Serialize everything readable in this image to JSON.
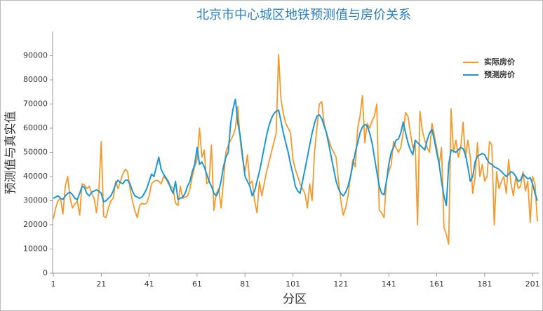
{
  "chart_data": {
    "type": "line",
    "title": "北京市中心城区地铁预测值与房价关系",
    "x_label": "分区",
    "y_label": "预测值与真实值",
    "x": [
      1,
      2,
      3,
      4,
      5,
      6,
      7,
      8,
      9,
      10,
      11,
      12,
      13,
      14,
      15,
      16,
      17,
      18,
      19,
      20,
      21,
      22,
      23,
      24,
      25,
      26,
      27,
      28,
      29,
      30,
      31,
      32,
      33,
      34,
      35,
      36,
      37,
      38,
      39,
      40,
      41,
      42,
      43,
      44,
      45,
      46,
      47,
      48,
      49,
      50,
      51,
      52,
      53,
      54,
      55,
      56,
      57,
      58,
      59,
      60,
      61,
      62,
      63,
      64,
      65,
      66,
      67,
      68,
      69,
      70,
      71,
      72,
      73,
      74,
      75,
      76,
      77,
      78,
      79,
      80,
      81,
      82,
      83,
      84,
      85,
      86,
      87,
      88,
      89,
      90,
      91,
      92,
      93,
      94,
      95,
      96,
      97,
      98,
      99,
      100,
      101,
      102,
      103,
      104,
      105,
      106,
      107,
      108,
      109,
      110,
      111,
      112,
      113,
      114,
      115,
      116,
      117,
      118,
      119,
      120,
      121,
      122,
      123,
      124,
      125,
      126,
      127,
      128,
      129,
      130,
      131,
      132,
      133,
      134,
      135,
      136,
      137,
      138,
      139,
      140,
      141,
      142,
      143,
      144,
      145,
      146,
      147,
      148,
      149,
      150,
      151,
      152,
      153,
      154,
      155,
      156,
      157,
      158,
      159,
      160,
      161,
      162,
      163,
      164,
      165,
      166,
      167,
      168,
      169,
      170,
      171,
      172,
      173,
      174,
      175,
      176,
      177,
      178,
      179,
      180,
      181,
      182,
      183,
      184,
      185,
      186,
      187,
      188,
      189,
      190,
      191,
      192,
      193,
      194,
      195,
      196,
      197,
      198,
      199,
      200,
      201,
      202,
      203
    ],
    "series": [
      {
        "name": "实际房价",
        "color": "#f39a2b",
        "values": [
          22500,
          27000,
          30000,
          31000,
          24500,
          36000,
          40000,
          31000,
          27000,
          28500,
          30000,
          24000,
          37000,
          36500,
          35000,
          36000,
          33000,
          31000,
          25000,
          34000,
          54500,
          23500,
          23000,
          27000,
          30000,
          31000,
          38000,
          35000,
          38000,
          41000,
          43000,
          42000,
          35000,
          30000,
          26000,
          23000,
          28000,
          29000,
          28500,
          29000,
          32000,
          37000,
          38000,
          38500,
          38000,
          37000,
          40000,
          39000,
          37000,
          36000,
          35000,
          29000,
          28000,
          36000,
          31000,
          31500,
          32000,
          35000,
          40000,
          44000,
          47000,
          60000,
          48000,
          51000,
          37000,
          38000,
          53000,
          26000,
          33000,
          35000,
          27000,
          38000,
          50000,
          53000,
          55000,
          57000,
          60000,
          69000,
          55000,
          47000,
          42000,
          49000,
          37000,
          38000,
          30000,
          25000,
          38000,
          32000,
          37000,
          42000,
          46000,
          50000,
          54000,
          58000,
          90500,
          72000,
          66000,
          62000,
          60000,
          58000,
          47000,
          43000,
          40000,
          37000,
          35000,
          33000,
          27000,
          37000,
          30000,
          50000,
          60000,
          70000,
          71000,
          62000,
          58000,
          55000,
          52000,
          50000,
          48000,
          38000,
          30000,
          24000,
          27000,
          32000,
          40000,
          47000,
          44000,
          60000,
          65000,
          73500,
          54000,
          62000,
          60000,
          63000,
          65000,
          70000,
          26000,
          25000,
          23000,
          38000,
          42000,
          45000,
          54500,
          52000,
          50000,
          52000,
          58000,
          66500,
          65000,
          58000,
          52000,
          54000,
          20000,
          67000,
          59000,
          55000,
          52000,
          50000,
          62000,
          57000,
          52000,
          45000,
          52000,
          19000,
          16000,
          12000,
          68000,
          50000,
          55000,
          48000,
          52000,
          62500,
          48000,
          55000,
          48000,
          33000,
          40000,
          54000,
          40000,
          45000,
          38000,
          40000,
          54500,
          53000,
          20000,
          42000,
          35000,
          38000,
          40000,
          33000,
          47000,
          37000,
          32000,
          40000,
          35000,
          36000,
          42000,
          34000,
          38000,
          21000,
          40000,
          37000,
          21500
        ]
      },
      {
        "name": "预测房价",
        "color": "#1b98d4",
        "values": [
          31000,
          31500,
          32000,
          31000,
          30500,
          32000,
          33000,
          33500,
          32500,
          31000,
          30500,
          33000,
          36000,
          35500,
          33000,
          32000,
          33500,
          34000,
          34500,
          34000,
          33000,
          29500,
          30000,
          31000,
          32000,
          34000,
          37000,
          38500,
          37500,
          37000,
          38500,
          38500,
          37000,
          34000,
          32000,
          31500,
          31000,
          31500,
          33000,
          35000,
          38000,
          41000,
          40000,
          44000,
          48000,
          43000,
          41000,
          39500,
          38000,
          35000,
          33000,
          38000,
          30500,
          31000,
          31500,
          33000,
          36000,
          38000,
          42000,
          45000,
          52000,
          45000,
          46000,
          44000,
          41000,
          38000,
          36000,
          33000,
          32000,
          34000,
          38000,
          44000,
          48000,
          50000,
          62000,
          68000,
          72000,
          62000,
          57000,
          48000,
          40000,
          38000,
          36000,
          32000,
          34000,
          38000,
          42000,
          47000,
          52000,
          57000,
          61000,
          64000,
          66000,
          67000,
          67500,
          63000,
          58000,
          54000,
          50000,
          45000,
          41000,
          36000,
          34000,
          33000,
          38000,
          43000,
          48000,
          53000,
          58000,
          62000,
          65000,
          65500,
          64000,
          61000,
          58000,
          53000,
          48000,
          43000,
          38000,
          35000,
          33000,
          32000,
          33500,
          36000,
          40000,
          45000,
          50000,
          54000,
          58000,
          60500,
          61500,
          61000,
          58000,
          54000,
          48000,
          42000,
          36000,
          33000,
          32500,
          38000,
          45000,
          50000,
          52000,
          55000,
          55500,
          58000,
          62500,
          58000,
          54000,
          51000,
          49000,
          55000,
          54000,
          53000,
          52000,
          51000,
          55000,
          58000,
          59500,
          55000,
          50000,
          45000,
          38000,
          32000,
          28000,
          45000,
          51000,
          50500,
          50000,
          51000,
          52000,
          51500,
          49000,
          44000,
          38000,
          40000,
          46000,
          48500,
          49000,
          49500,
          49000,
          47000,
          45500,
          45000,
          44000,
          43500,
          43000,
          42000,
          41000,
          40000,
          41000,
          42000,
          41500,
          40000,
          38000,
          38500,
          41000,
          40000,
          39000,
          39500,
          37000,
          33000,
          30000
        ]
      }
    ],
    "xlim": [
      1,
      203
    ],
    "xticks": [
      1,
      21,
      41,
      61,
      81,
      101,
      121,
      141,
      161,
      181,
      201
    ],
    "ylim": [
      0,
      100000
    ],
    "yticks": [
      0,
      10000,
      20000,
      30000,
      40000,
      50000,
      60000,
      70000,
      80000,
      90000
    ],
    "legend": "upper right"
  }
}
